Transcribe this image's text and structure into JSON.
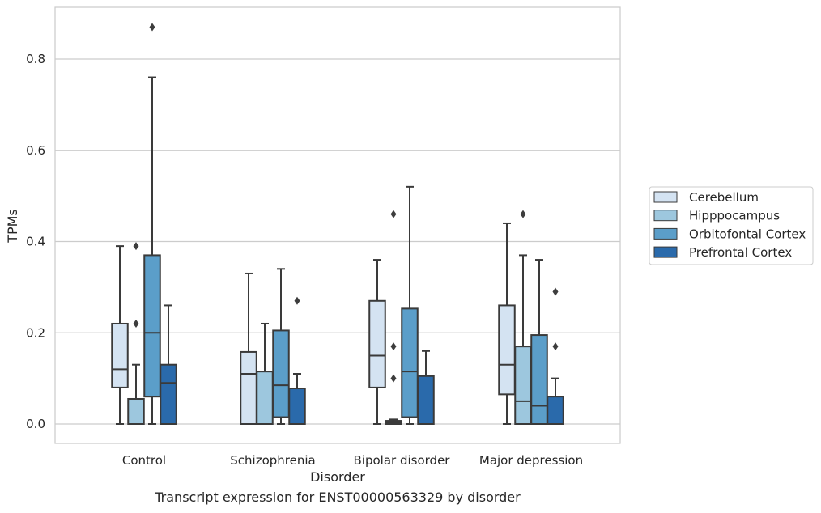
{
  "chart_data": {
    "type": "box",
    "xlabel": "Disorder",
    "ylabel": "TPMs",
    "caption": "Transcript expression for ENST00000563329 by disorder",
    "ylim": [
      -0.042,
      0.92
    ],
    "yticks": [
      0.0,
      0.2,
      0.4,
      0.6,
      0.8
    ],
    "ytick_labels": [
      "0.0",
      "0.2",
      "0.4",
      "0.6",
      "0.8"
    ],
    "grid": "horizontal",
    "legend_position": "right",
    "categories": [
      "Control",
      "Schizophrenia",
      "Bipolar disorder",
      "Major depression"
    ],
    "series": [
      {
        "name": "Cerebellum",
        "color": "#d4e3f2",
        "boxes": [
          {
            "whislo": 0.0,
            "q1": 0.08,
            "med": 0.12,
            "q3": 0.22,
            "whishi": 0.39,
            "fliers": []
          },
          {
            "whislo": 0.0,
            "q1": 0.0,
            "med": 0.11,
            "q3": 0.158,
            "whishi": 0.33,
            "fliers": []
          },
          {
            "whislo": 0.0,
            "q1": 0.08,
            "med": 0.15,
            "q3": 0.27,
            "whishi": 0.36,
            "fliers": []
          },
          {
            "whislo": 0.0,
            "q1": 0.065,
            "med": 0.13,
            "q3": 0.26,
            "whishi": 0.44,
            "fliers": []
          }
        ]
      },
      {
        "name": "Hipppocampus",
        "color": "#9dc7de",
        "boxes": [
          {
            "whislo": 0.0,
            "q1": 0.0,
            "med": 0.0,
            "q3": 0.055,
            "whishi": 0.13,
            "fliers": [
              0.22,
              0.39
            ]
          },
          {
            "whislo": 0.0,
            "q1": 0.0,
            "med": 0.0,
            "q3": 0.115,
            "whishi": 0.22,
            "fliers": []
          },
          {
            "whislo": 0.0,
            "q1": 0.0,
            "med": 0.003,
            "q3": 0.007,
            "whishi": 0.01,
            "fliers": [
              0.1,
              0.17,
              0.46
            ]
          },
          {
            "whislo": 0.0,
            "q1": 0.0,
            "med": 0.05,
            "q3": 0.17,
            "whishi": 0.37,
            "fliers": [
              0.46
            ]
          }
        ]
      },
      {
        "name": "Orbitofontal Cortex",
        "color": "#5b9ec9",
        "boxes": [
          {
            "whislo": 0.0,
            "q1": 0.06,
            "med": 0.2,
            "q3": 0.37,
            "whishi": 0.76,
            "fliers": [
              0.87
            ]
          },
          {
            "whislo": 0.0,
            "q1": 0.015,
            "med": 0.085,
            "q3": 0.205,
            "whishi": 0.34,
            "fliers": []
          },
          {
            "whislo": 0.0,
            "q1": 0.015,
            "med": 0.115,
            "q3": 0.253,
            "whishi": 0.52,
            "fliers": []
          },
          {
            "whislo": 0.0,
            "q1": 0.0,
            "med": 0.04,
            "q3": 0.195,
            "whishi": 0.36,
            "fliers": []
          }
        ]
      },
      {
        "name": "Prefrontal Cortex",
        "color": "#2a6aab",
        "boxes": [
          {
            "whislo": 0.0,
            "q1": 0.0,
            "med": 0.09,
            "q3": 0.13,
            "whishi": 0.26,
            "fliers": []
          },
          {
            "whislo": 0.0,
            "q1": 0.0,
            "med": 0.0,
            "q3": 0.078,
            "whishi": 0.11,
            "fliers": [
              0.27
            ]
          },
          {
            "whislo": 0.0,
            "q1": 0.0,
            "med": 0.0,
            "q3": 0.105,
            "whishi": 0.16,
            "fliers": []
          },
          {
            "whislo": 0.0,
            "q1": 0.0,
            "med": 0.0,
            "q3": 0.06,
            "whishi": 0.1,
            "fliers": [
              0.17,
              0.29
            ]
          }
        ]
      }
    ]
  }
}
